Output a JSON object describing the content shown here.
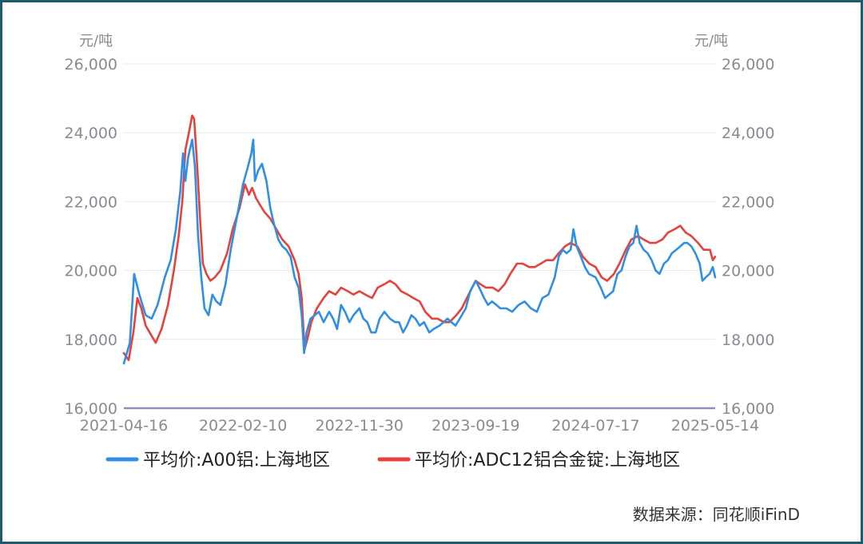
{
  "chart_data": {
    "type": "line",
    "unit_left": "元/吨",
    "unit_right": "元/吨",
    "ylim": [
      16000,
      26000
    ],
    "y_ticks": [
      "16,000",
      "18,000",
      "20,000",
      "22,000",
      "24,000",
      "26,000"
    ],
    "y_tick_values": [
      16000,
      18000,
      20000,
      22000,
      24000,
      26000
    ],
    "x_ticks": [
      "2021-04-16",
      "2022-02-10",
      "2022-11-30",
      "2023-09-19",
      "2024-07-17",
      "2025-05-14"
    ],
    "x_range": [
      "2021-04-16",
      "2025-05-14"
    ],
    "grid": true,
    "legend_position": "bottom",
    "series": [
      {
        "name": "平均价:A00铝:上海地区",
        "color": "#2f8fe6",
        "points": [
          [
            "2021-04-16",
            17300
          ],
          [
            "2021-05-01",
            17900
          ],
          [
            "2021-05-12",
            19900
          ],
          [
            "2021-05-25",
            19300
          ],
          [
            "2021-06-10",
            18700
          ],
          [
            "2021-06-25",
            18600
          ],
          [
            "2021-07-10",
            19000
          ],
          [
            "2021-07-28",
            19800
          ],
          [
            "2021-08-12",
            20300
          ],
          [
            "2021-08-25",
            21200
          ],
          [
            "2021-09-05",
            22300
          ],
          [
            "2021-09-12",
            23400
          ],
          [
            "2021-09-18",
            22600
          ],
          [
            "2021-09-25",
            23300
          ],
          [
            "2021-10-05",
            23800
          ],
          [
            "2021-10-12",
            23000
          ],
          [
            "2021-10-20",
            21000
          ],
          [
            "2021-10-28",
            19800
          ],
          [
            "2021-11-05",
            18900
          ],
          [
            "2021-11-15",
            18700
          ],
          [
            "2021-11-25",
            19300
          ],
          [
            "2021-12-05",
            19100
          ],
          [
            "2021-12-15",
            19000
          ],
          [
            "2021-12-28",
            19600
          ],
          [
            "2022-01-10",
            20600
          ],
          [
            "2022-01-25",
            21500
          ],
          [
            "2022-02-10",
            22500
          ],
          [
            "2022-02-22",
            23000
          ],
          [
            "2022-03-03",
            23400
          ],
          [
            "2022-03-08",
            23800
          ],
          [
            "2022-03-12",
            22600
          ],
          [
            "2022-03-20",
            22900
          ],
          [
            "2022-03-30",
            23100
          ],
          [
            "2022-04-10",
            22600
          ],
          [
            "2022-04-20",
            21800
          ],
          [
            "2022-04-28",
            21400
          ],
          [
            "2022-05-10",
            20900
          ],
          [
            "2022-05-20",
            20700
          ],
          [
            "2022-05-30",
            20600
          ],
          [
            "2022-06-10",
            20400
          ],
          [
            "2022-06-20",
            19800
          ],
          [
            "2022-06-30",
            19500
          ],
          [
            "2022-07-08",
            18700
          ],
          [
            "2022-07-14",
            17600
          ],
          [
            "2022-07-20",
            18200
          ],
          [
            "2022-07-30",
            18600
          ],
          [
            "2022-08-10",
            18700
          ],
          [
            "2022-08-20",
            18800
          ],
          [
            "2022-09-01",
            18500
          ],
          [
            "2022-09-15",
            18800
          ],
          [
            "2022-09-25",
            18600
          ],
          [
            "2022-10-05",
            18300
          ],
          [
            "2022-10-15",
            19000
          ],
          [
            "2022-10-25",
            18800
          ],
          [
            "2022-11-05",
            18500
          ],
          [
            "2022-11-15",
            18700
          ],
          [
            "2022-11-30",
            18900
          ],
          [
            "2022-12-10",
            18600
          ],
          [
            "2022-12-20",
            18500
          ],
          [
            "2022-12-30",
            18200
          ],
          [
            "2023-01-10",
            18200
          ],
          [
            "2023-01-20",
            18600
          ],
          [
            "2023-02-01",
            18800
          ],
          [
            "2023-02-15",
            18600
          ],
          [
            "2023-02-28",
            18500
          ],
          [
            "2023-03-10",
            18500
          ],
          [
            "2023-03-20",
            18200
          ],
          [
            "2023-03-30",
            18400
          ],
          [
            "2023-04-10",
            18700
          ],
          [
            "2023-04-20",
            18600
          ],
          [
            "2023-05-01",
            18400
          ],
          [
            "2023-05-12",
            18500
          ],
          [
            "2023-05-25",
            18200
          ],
          [
            "2023-06-05",
            18300
          ],
          [
            "2023-06-20",
            18400
          ],
          [
            "2023-06-30",
            18500
          ],
          [
            "2023-07-10",
            18600
          ],
          [
            "2023-07-20",
            18500
          ],
          [
            "2023-07-30",
            18400
          ],
          [
            "2023-08-10",
            18600
          ],
          [
            "2023-08-25",
            18900
          ],
          [
            "2023-09-05",
            19400
          ],
          [
            "2023-09-19",
            19700
          ],
          [
            "2023-09-28",
            19500
          ],
          [
            "2023-10-10",
            19200
          ],
          [
            "2023-10-20",
            19000
          ],
          [
            "2023-10-30",
            19100
          ],
          [
            "2023-11-10",
            19000
          ],
          [
            "2023-11-20",
            18900
          ],
          [
            "2023-12-05",
            18900
          ],
          [
            "2023-12-20",
            18800
          ],
          [
            "2024-01-05",
            19000
          ],
          [
            "2024-01-20",
            19100
          ],
          [
            "2024-02-05",
            18900
          ],
          [
            "2024-02-20",
            18800
          ],
          [
            "2024-03-05",
            19200
          ],
          [
            "2024-03-20",
            19300
          ],
          [
            "2024-04-05",
            19800
          ],
          [
            "2024-04-15",
            20400
          ],
          [
            "2024-04-25",
            20600
          ],
          [
            "2024-05-05",
            20500
          ],
          [
            "2024-05-15",
            20600
          ],
          [
            "2024-05-22",
            21200
          ],
          [
            "2024-05-30",
            20700
          ],
          [
            "2024-06-10",
            20400
          ],
          [
            "2024-06-20",
            20100
          ],
          [
            "2024-06-30",
            19900
          ],
          [
            "2024-07-17",
            19800
          ],
          [
            "2024-07-30",
            19500
          ],
          [
            "2024-08-10",
            19200
          ],
          [
            "2024-08-20",
            19300
          ],
          [
            "2024-08-30",
            19400
          ],
          [
            "2024-09-10",
            19900
          ],
          [
            "2024-09-20",
            20000
          ],
          [
            "2024-09-30",
            20400
          ],
          [
            "2024-10-10",
            20700
          ],
          [
            "2024-10-20",
            20800
          ],
          [
            "2024-10-28",
            21300
          ],
          [
            "2024-11-05",
            20800
          ],
          [
            "2024-11-15",
            20600
          ],
          [
            "2024-11-25",
            20500
          ],
          [
            "2024-12-05",
            20300
          ],
          [
            "2024-12-15",
            20000
          ],
          [
            "2024-12-25",
            19900
          ],
          [
            "2025-01-05",
            20200
          ],
          [
            "2025-01-15",
            20300
          ],
          [
            "2025-01-25",
            20500
          ],
          [
            "2025-02-05",
            20600
          ],
          [
            "2025-02-15",
            20700
          ],
          [
            "2025-02-25",
            20800
          ],
          [
            "2025-03-05",
            20800
          ],
          [
            "2025-03-15",
            20700
          ],
          [
            "2025-03-25",
            20500
          ],
          [
            "2025-04-05",
            20200
          ],
          [
            "2025-04-12",
            19700
          ],
          [
            "2025-04-20",
            19800
          ],
          [
            "2025-04-30",
            19900
          ],
          [
            "2025-05-08",
            20100
          ],
          [
            "2025-05-14",
            19800
          ]
        ]
      },
      {
        "name": "平均价:ADC12铝合金锭:上海地区",
        "color": "#e8413c",
        "points": [
          [
            "2021-04-16",
            17600
          ],
          [
            "2021-04-28",
            17400
          ],
          [
            "2021-05-10",
            18200
          ],
          [
            "2021-05-20",
            19200
          ],
          [
            "2021-05-30",
            18900
          ],
          [
            "2021-06-10",
            18400
          ],
          [
            "2021-06-20",
            18200
          ],
          [
            "2021-07-05",
            17900
          ],
          [
            "2021-07-20",
            18300
          ],
          [
            "2021-08-05",
            19000
          ],
          [
            "2021-08-20",
            20000
          ],
          [
            "2021-09-01",
            21000
          ],
          [
            "2021-09-10",
            22000
          ],
          [
            "2021-09-18",
            23500
          ],
          [
            "2021-09-25",
            23900
          ],
          [
            "2021-10-05",
            24500
          ],
          [
            "2021-10-10",
            24400
          ],
          [
            "2021-10-18",
            23000
          ],
          [
            "2021-10-25",
            21500
          ],
          [
            "2021-11-01",
            20200
          ],
          [
            "2021-11-10",
            19900
          ],
          [
            "2021-11-20",
            19700
          ],
          [
            "2021-12-01",
            19800
          ],
          [
            "2021-12-15",
            20000
          ],
          [
            "2022-01-01",
            20500
          ],
          [
            "2022-01-15",
            21200
          ],
          [
            "2022-02-01",
            21800
          ],
          [
            "2022-02-15",
            22500
          ],
          [
            "2022-02-25",
            22200
          ],
          [
            "2022-03-05",
            22400
          ],
          [
            "2022-03-15",
            22100
          ],
          [
            "2022-03-25",
            21900
          ],
          [
            "2022-04-05",
            21700
          ],
          [
            "2022-04-20",
            21500
          ],
          [
            "2022-05-05",
            21200
          ],
          [
            "2022-05-20",
            20900
          ],
          [
            "2022-06-05",
            20700
          ],
          [
            "2022-06-20",
            20300
          ],
          [
            "2022-06-30",
            19900
          ],
          [
            "2022-07-08",
            19200
          ],
          [
            "2022-07-15",
            17700
          ],
          [
            "2022-07-22",
            18000
          ],
          [
            "2022-08-01",
            18500
          ],
          [
            "2022-08-15",
            18900
          ],
          [
            "2022-09-01",
            19200
          ],
          [
            "2022-09-15",
            19400
          ],
          [
            "2022-10-01",
            19300
          ],
          [
            "2022-10-15",
            19500
          ],
          [
            "2022-11-01",
            19400
          ],
          [
            "2022-11-15",
            19300
          ],
          [
            "2022-11-30",
            19400
          ],
          [
            "2022-12-15",
            19300
          ],
          [
            "2023-01-01",
            19200
          ],
          [
            "2023-01-15",
            19500
          ],
          [
            "2023-02-01",
            19600
          ],
          [
            "2023-02-15",
            19700
          ],
          [
            "2023-03-01",
            19600
          ],
          [
            "2023-03-15",
            19400
          ],
          [
            "2023-04-01",
            19300
          ],
          [
            "2023-04-15",
            19200
          ],
          [
            "2023-05-01",
            19100
          ],
          [
            "2023-05-15",
            18800
          ],
          [
            "2023-06-01",
            18600
          ],
          [
            "2023-06-15",
            18600
          ],
          [
            "2023-07-01",
            18500
          ],
          [
            "2023-07-15",
            18500
          ],
          [
            "2023-08-01",
            18700
          ],
          [
            "2023-08-15",
            18900
          ],
          [
            "2023-09-01",
            19300
          ],
          [
            "2023-09-19",
            19700
          ],
          [
            "2023-10-01",
            19600
          ],
          [
            "2023-10-15",
            19500
          ],
          [
            "2023-11-01",
            19500
          ],
          [
            "2023-11-15",
            19400
          ],
          [
            "2023-12-01",
            19600
          ],
          [
            "2023-12-15",
            19900
          ],
          [
            "2024-01-01",
            20200
          ],
          [
            "2024-01-15",
            20200
          ],
          [
            "2024-02-01",
            20100
          ],
          [
            "2024-02-15",
            20100
          ],
          [
            "2024-03-01",
            20200
          ],
          [
            "2024-03-15",
            20300
          ],
          [
            "2024-04-01",
            20300
          ],
          [
            "2024-04-15",
            20500
          ],
          [
            "2024-05-01",
            20700
          ],
          [
            "2024-05-15",
            20800
          ],
          [
            "2024-06-01",
            20700
          ],
          [
            "2024-06-15",
            20400
          ],
          [
            "2024-07-01",
            20200
          ],
          [
            "2024-07-17",
            20100
          ],
          [
            "2024-08-01",
            19800
          ],
          [
            "2024-08-15",
            19700
          ],
          [
            "2024-09-01",
            19900
          ],
          [
            "2024-09-15",
            20200
          ],
          [
            "2024-10-01",
            20600
          ],
          [
            "2024-10-15",
            20900
          ],
          [
            "2024-11-01",
            21000
          ],
          [
            "2024-11-15",
            20900
          ],
          [
            "2024-12-01",
            20800
          ],
          [
            "2024-12-15",
            20800
          ],
          [
            "2025-01-01",
            20900
          ],
          [
            "2025-01-15",
            21100
          ],
          [
            "2025-02-01",
            21200
          ],
          [
            "2025-02-15",
            21300
          ],
          [
            "2025-03-01",
            21100
          ],
          [
            "2025-03-15",
            21000
          ],
          [
            "2025-04-01",
            20800
          ],
          [
            "2025-04-15",
            20600
          ],
          [
            "2025-05-01",
            20600
          ],
          [
            "2025-05-08",
            20300
          ],
          [
            "2025-05-14",
            20400
          ]
        ]
      }
    ]
  },
  "source_text": "数据来源：同花顺iFinD"
}
